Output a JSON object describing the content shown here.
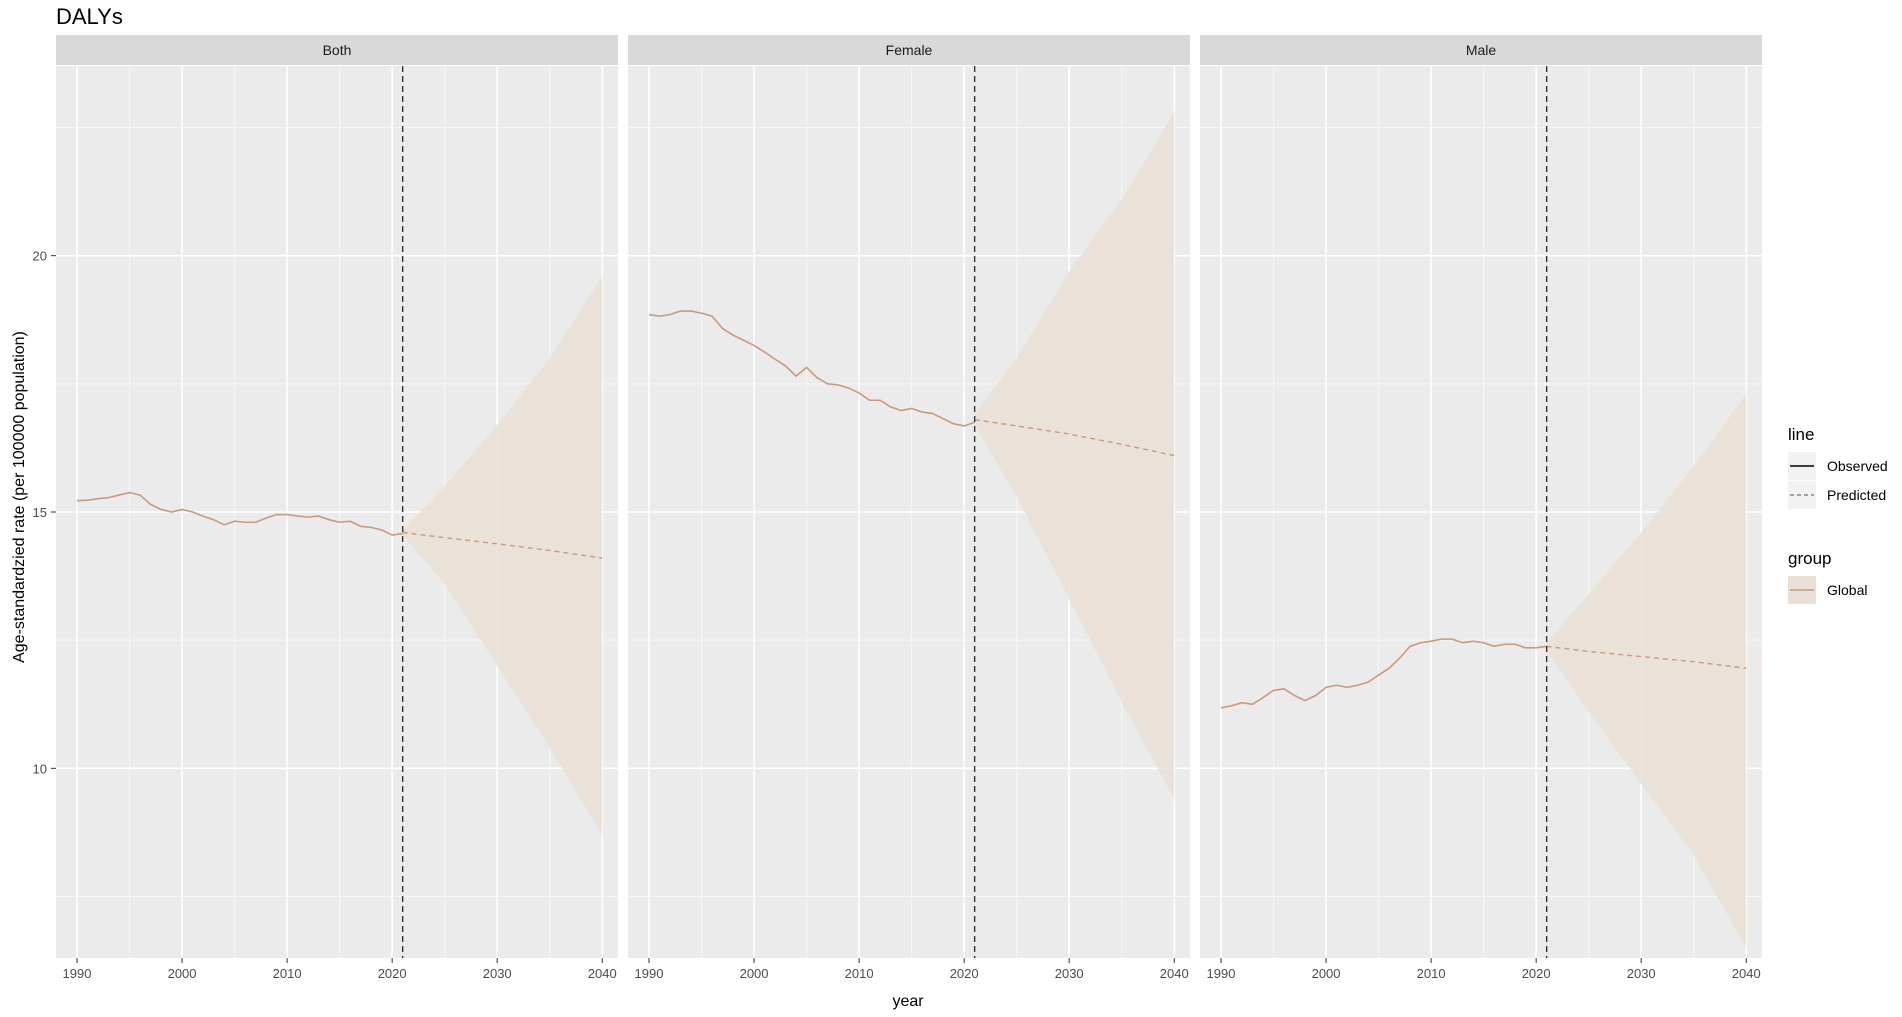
{
  "chart_data": {
    "type": "line",
    "title": "DALYs",
    "xlabel": "year",
    "ylabel": "Age-standardzied rate (per 100000 population)",
    "xlim": [
      1988,
      2041.5
    ],
    "ylim": [
      6.3,
      23.7
    ],
    "x_ticks": [
      1990,
      2000,
      2010,
      2020,
      2030,
      2040
    ],
    "x_tick_labels": [
      "1990",
      "2000",
      "2010",
      "2020",
      "2030",
      "2040"
    ],
    "y_ticks": [
      10,
      15,
      20
    ],
    "y_tick_labels": [
      "10",
      "15",
      "20"
    ],
    "grid": true,
    "vline_x": 2021,
    "legend": {
      "position": "right",
      "line_title": "line",
      "line_items": [
        "Observed",
        "Predicted"
      ],
      "group_title": "group",
      "group_items": [
        "Global"
      ]
    },
    "colors": {
      "series": "#c99a7d",
      "ribbon": "#eadfd6",
      "panel": "#ebebeb",
      "strip": "#d9d9d9",
      "vline": "#333333"
    },
    "panels": [
      {
        "name": "Both",
        "observed": {
          "x": [
            1990,
            1991,
            1992,
            1993,
            1994,
            1995,
            1996,
            1997,
            1998,
            1999,
            2000,
            2001,
            2002,
            2003,
            2004,
            2005,
            2006,
            2007,
            2008,
            2009,
            2010,
            2011,
            2012,
            2013,
            2014,
            2015,
            2016,
            2017,
            2018,
            2019,
            2020,
            2021
          ],
          "y": [
            15.22,
            15.23,
            15.26,
            15.28,
            15.33,
            15.38,
            15.33,
            15.15,
            15.05,
            15.0,
            15.05,
            15.0,
            14.92,
            14.85,
            14.75,
            14.82,
            14.8,
            14.8,
            14.88,
            14.95,
            14.95,
            14.92,
            14.9,
            14.92,
            14.85,
            14.8,
            14.82,
            14.72,
            14.7,
            14.65,
            14.55,
            14.58
          ]
        },
        "predicted": {
          "x": [
            2021,
            2025,
            2030,
            2035,
            2040
          ],
          "y": [
            14.6,
            14.5,
            14.38,
            14.25,
            14.1
          ],
          "lower": [
            14.55,
            13.6,
            12.0,
            10.4,
            8.7
          ],
          "upper": [
            14.65,
            15.5,
            16.7,
            18.0,
            19.6
          ]
        }
      },
      {
        "name": "Female",
        "observed": {
          "x": [
            1990,
            1991,
            1992,
            1993,
            1994,
            1995,
            1996,
            1997,
            1998,
            1999,
            2000,
            2001,
            2002,
            2003,
            2004,
            2005,
            2006,
            2007,
            2008,
            2009,
            2010,
            2011,
            2012,
            2013,
            2014,
            2015,
            2016,
            2017,
            2018,
            2019,
            2020,
            2021
          ],
          "y": [
            18.85,
            18.82,
            18.85,
            18.92,
            18.92,
            18.88,
            18.82,
            18.58,
            18.45,
            18.35,
            18.25,
            18.12,
            17.98,
            17.85,
            17.65,
            17.82,
            17.62,
            17.5,
            17.48,
            17.42,
            17.32,
            17.18,
            17.18,
            17.05,
            16.98,
            17.02,
            16.95,
            16.92,
            16.82,
            16.72,
            16.68,
            16.75
          ]
        },
        "predicted": {
          "x": [
            2021,
            2025,
            2030,
            2035,
            2040
          ],
          "y": [
            16.8,
            16.68,
            16.52,
            16.32,
            16.1
          ],
          "lower": [
            16.7,
            15.3,
            13.3,
            11.3,
            9.4
          ],
          "upper": [
            16.9,
            18.0,
            19.7,
            21.1,
            22.8
          ]
        }
      },
      {
        "name": "Male",
        "observed": {
          "x": [
            1990,
            1991,
            1992,
            1993,
            1994,
            1995,
            1996,
            1997,
            1998,
            1999,
            2000,
            2001,
            2002,
            2003,
            2004,
            2005,
            2006,
            2007,
            2008,
            2009,
            2010,
            2011,
            2012,
            2013,
            2014,
            2015,
            2016,
            2017,
            2018,
            2019,
            2020,
            2021
          ],
          "y": [
            11.18,
            11.22,
            11.28,
            11.25,
            11.38,
            11.52,
            11.55,
            11.42,
            11.32,
            11.42,
            11.58,
            11.62,
            11.58,
            11.62,
            11.68,
            11.82,
            11.95,
            12.15,
            12.38,
            12.45,
            12.48,
            12.52,
            12.52,
            12.45,
            12.48,
            12.45,
            12.38,
            12.42,
            12.42,
            12.35,
            12.35,
            12.38
          ]
        },
        "predicted": {
          "x": [
            2021,
            2025,
            2030,
            2035,
            2040
          ],
          "y": [
            12.38,
            12.28,
            12.18,
            12.08,
            11.95
          ],
          "lower": [
            12.3,
            11.1,
            9.7,
            8.3,
            6.5
          ],
          "upper": [
            12.45,
            13.4,
            14.6,
            15.9,
            17.3
          ]
        }
      }
    ]
  }
}
